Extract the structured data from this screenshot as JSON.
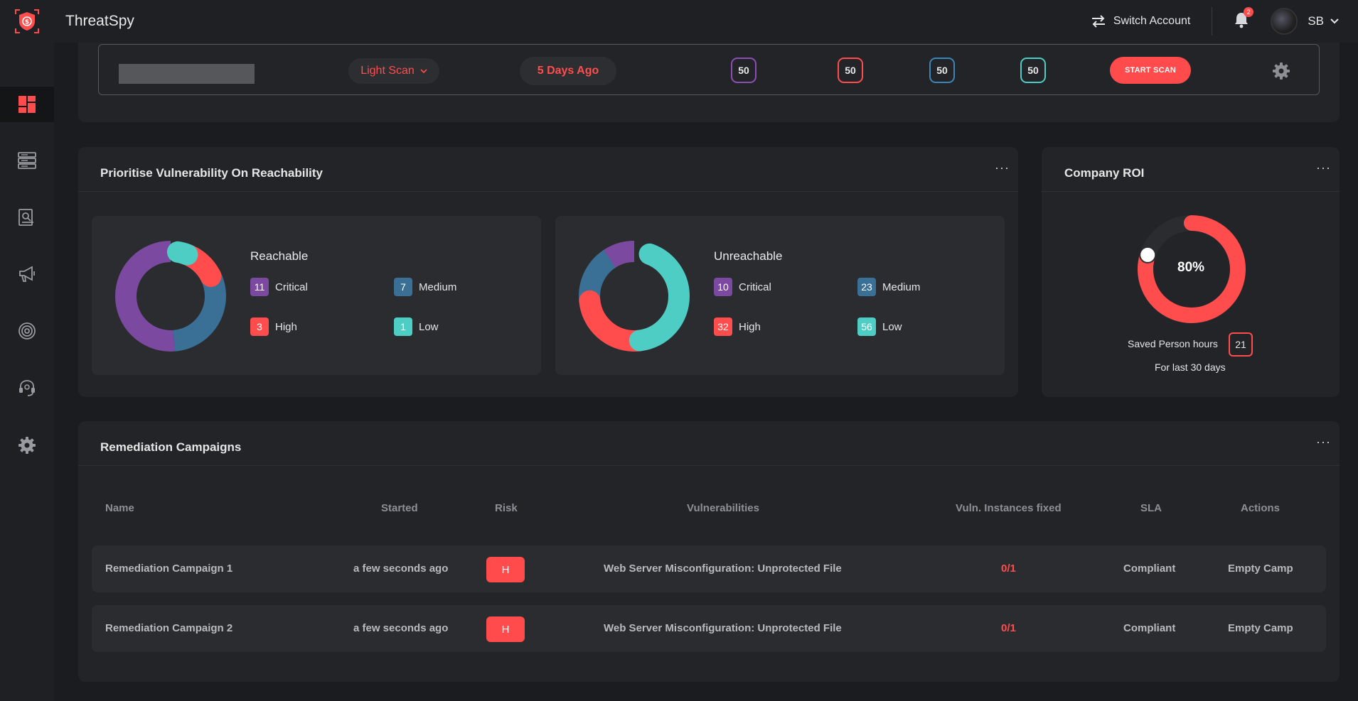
{
  "app": {
    "title": "ThreatSpy"
  },
  "header": {
    "switch_account": "Switch Account",
    "notifications_count": "2",
    "user_initials": "SB"
  },
  "sidebar": {
    "items": [
      {
        "icon": "dashboard-icon",
        "active": true
      },
      {
        "icon": "server-icon",
        "active": false
      },
      {
        "icon": "report-search-icon",
        "active": false
      },
      {
        "icon": "megaphone-icon",
        "active": false
      },
      {
        "icon": "target-icon",
        "active": false
      },
      {
        "icon": "support-headset-icon",
        "active": false
      },
      {
        "icon": "gear-icon",
        "active": false
      }
    ]
  },
  "scan_bar": {
    "input_value": "",
    "scan_type": "Light Scan",
    "last_scan": "5 Days Ago",
    "counts": [
      {
        "value": "50",
        "color": "#8b4fb3"
      },
      {
        "value": "50",
        "color": "#ff4d4d"
      },
      {
        "value": "50",
        "color": "#3a86b8"
      },
      {
        "value": "50",
        "color": "#4ecdc4"
      }
    ],
    "start_label": "START SCAN"
  },
  "vuln_panel": {
    "title": "Prioritise Vulnerability On Reachability",
    "more": "···",
    "reachable": {
      "label": "Reachable",
      "critical": "11",
      "medium": "7",
      "high": "3",
      "low": "1"
    },
    "unreachable": {
      "label": "Unreachable",
      "critical": "10",
      "medium": "23",
      "high": "32",
      "low": "56"
    },
    "legend": {
      "critical": "Critical",
      "medium": "Medium",
      "high": "High",
      "low": "Low"
    }
  },
  "roi_panel": {
    "title": "Company ROI",
    "more": "···",
    "percent_label": "80%",
    "percent_value": 0.8,
    "saved_label": "Saved Person hours",
    "saved_value": "21",
    "period": "For last 30 days"
  },
  "campaigns": {
    "title": "Remediation Campaigns",
    "more": "···",
    "columns": [
      "Name",
      "Started",
      "Risk",
      "Vulnerabilities",
      "Vuln. Instances fixed",
      "SLA",
      "Actions"
    ],
    "rows": [
      {
        "name": "Remediation Campaign 1",
        "started": "a few seconds ago",
        "risk": "H",
        "vulnerability": "Web Server Misconfiguration: Unprotected File",
        "fixed": "0/1",
        "sla": "Compliant",
        "action": "Empty Camp"
      },
      {
        "name": "Remediation Campaign 2",
        "started": "a few seconds ago",
        "risk": "H",
        "vulnerability": "Web Server Misconfiguration: Unprotected File",
        "fixed": "0/1",
        "sla": "Compliant",
        "action": "Empty Camp"
      }
    ]
  },
  "colors": {
    "accent": "#ff4d4d",
    "critical": "#7b4aa0",
    "medium": "#3a6f96",
    "high": "#ff4d4d",
    "low": "#4ecdc4"
  }
}
